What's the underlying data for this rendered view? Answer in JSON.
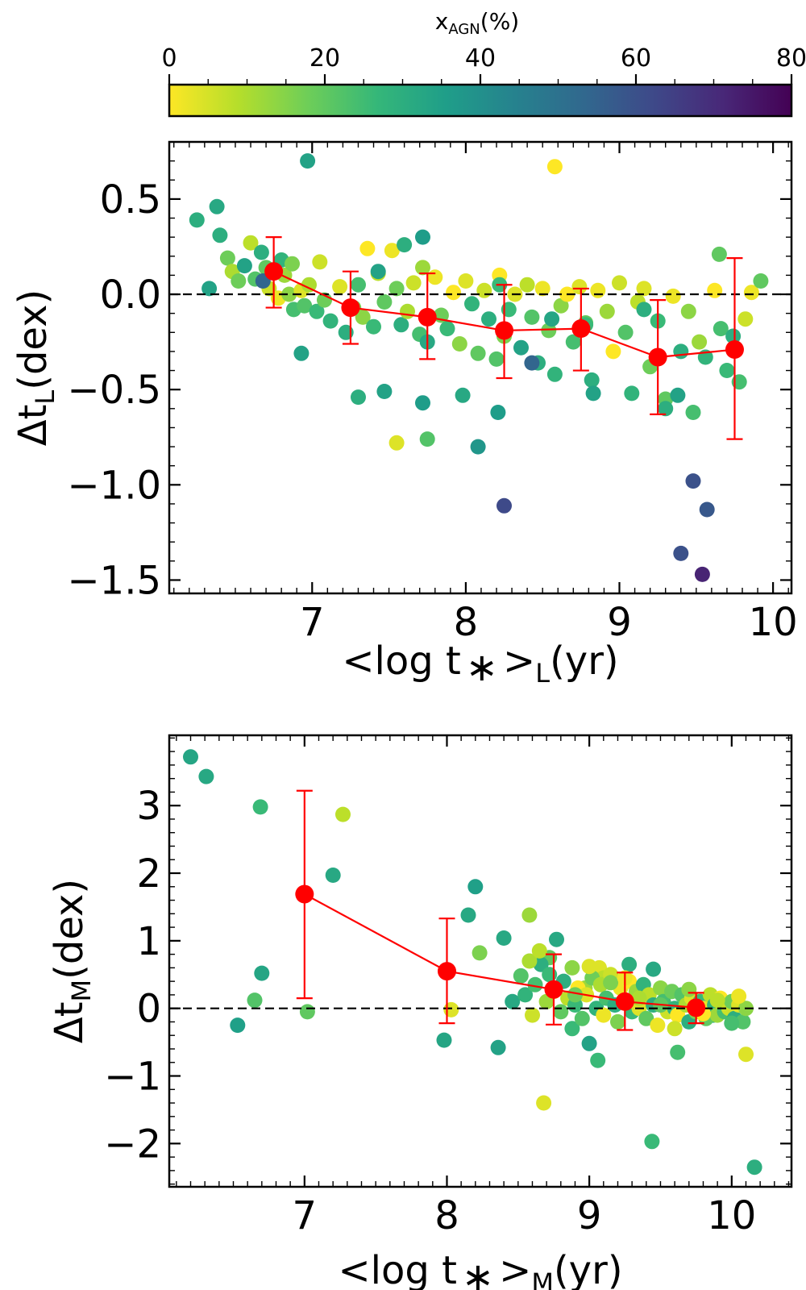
{
  "colorbar": {
    "label_main": "x",
    "label_sub": "AGN",
    "label_unit": "(%)",
    "range": [
      0,
      80
    ],
    "ticks": [
      0,
      20,
      40,
      60,
      80
    ],
    "tick_labels": [
      "0",
      "20",
      "40",
      "60",
      "80"
    ],
    "colormap": "viridis_r",
    "colors": [
      "#fde725",
      "#b5de2b",
      "#6ece58",
      "#35b779",
      "#1f9e89",
      "#26828e",
      "#31688e",
      "#3e4989",
      "#482878",
      "#440154"
    ]
  },
  "accent_color": "#ff0000",
  "chart_data": [
    {
      "type": "scatter",
      "title": "",
      "xlabel_pre": "<log t",
      "xlabel_star": "∗",
      "xlabel_mid": ">",
      "xlabel_sub": "L",
      "xlabel_post": "(yr)",
      "ylabel_pre": "Δt",
      "ylabel_sub": "L",
      "ylabel_post": "(dex)",
      "xlim": [
        6.07,
        10.12
      ],
      "ylim": [
        -1.57,
        0.8
      ],
      "xticks": [
        7,
        8,
        9,
        10
      ],
      "xtick_labels": [
        "7",
        "8",
        "9",
        "10"
      ],
      "yticks": [
        -1.5,
        -1.0,
        -0.5,
        0.0,
        0.5
      ],
      "ytick_labels": [
        "−1.5",
        "−1.0",
        "−0.5",
        "0.0",
        "0.5"
      ],
      "reference_line_y": 0,
      "points": {
        "x": [
          6.25,
          6.38,
          6.4,
          6.45,
          6.48,
          6.52,
          6.56,
          6.6,
          6.63,
          6.67,
          6.7,
          6.72,
          6.78,
          6.8,
          6.82,
          6.85,
          6.88,
          6.93,
          6.95,
          6.98,
          7.03,
          7.05,
          7.08,
          7.12,
          7.18,
          7.22,
          7.27,
          7.3,
          7.33,
          7.36,
          7.4,
          7.43,
          7.47,
          7.52,
          7.55,
          7.58,
          7.62,
          7.66,
          7.7,
          7.72,
          7.75,
          7.8,
          7.84,
          7.88,
          7.92,
          7.96,
          8.0,
          8.04,
          8.08,
          8.12,
          8.15,
          8.2,
          8.22,
          8.25,
          8.28,
          8.32,
          8.36,
          8.4,
          8.43,
          8.47,
          8.5,
          8.54,
          8.58,
          8.62,
          8.66,
          8.7,
          8.74,
          8.78,
          8.82,
          8.86,
          8.92,
          8.96,
          9.0,
          9.04,
          9.08,
          9.12,
          9.16,
          9.2,
          9.25,
          9.3,
          9.35,
          9.4,
          9.45,
          9.48,
          9.52,
          9.56,
          9.62,
          9.66,
          9.7,
          9.74,
          9.78,
          9.82,
          9.86,
          9.92,
          6.33,
          6.68,
          6.87,
          7.43,
          7.6,
          7.72,
          7.98,
          8.22,
          8.43,
          8.56,
          6.97,
          7.72,
          8.83,
          9.4,
          9.57,
          9.48,
          9.54,
          9.38,
          9.3,
          8.25,
          8.21,
          8.58,
          6.93,
          7.47,
          7.3,
          8.08,
          8.78,
          9.16,
          9.65,
          7.75,
          7.55
        ],
        "y": [
          0.39,
          0.46,
          0.31,
          0.19,
          0.12,
          0.07,
          0.15,
          0.27,
          0.08,
          0.22,
          0.14,
          0.03,
          -0.02,
          0.18,
          0.1,
          0.0,
          -0.08,
          0.02,
          -0.06,
          0.05,
          -0.09,
          0.17,
          -0.03,
          -0.14,
          0.04,
          -0.2,
          -0.07,
          0.05,
          -0.12,
          0.24,
          -0.17,
          0.11,
          -0.04,
          0.23,
          0.03,
          -0.16,
          -0.09,
          0.06,
          -0.21,
          0.14,
          -0.25,
          0.09,
          -0.11,
          -0.18,
          0.01,
          -0.26,
          0.07,
          -0.05,
          -0.31,
          0.02,
          -0.13,
          -0.34,
          0.1,
          -0.22,
          -0.08,
          0.0,
          -0.28,
          0.05,
          -0.12,
          -0.36,
          0.03,
          -0.19,
          -0.42,
          -0.06,
          0.0,
          -0.25,
          0.04,
          -0.15,
          -0.45,
          0.02,
          -0.09,
          -0.3,
          0.06,
          -0.2,
          -0.52,
          -0.04,
          0.03,
          -0.38,
          -0.14,
          -0.55,
          -0.01,
          -0.3,
          -0.09,
          -0.62,
          -0.25,
          -0.33,
          0.02,
          -0.18,
          -0.4,
          -0.22,
          -0.46,
          -0.13,
          0.01,
          0.07,
          0.03,
          0.07,
          0.16,
          0.12,
          0.26,
          0.3,
          -0.53,
          0.05,
          -0.36,
          -0.13,
          0.7,
          -0.57,
          -0.52,
          -1.36,
          -1.13,
          -0.98,
          -1.47,
          -0.53,
          -0.6,
          -1.11,
          -0.62,
          0.67,
          -0.31,
          -0.51,
          -0.54,
          -0.8,
          -0.16,
          -0.08,
          0.21,
          -0.76,
          -0.78
        ],
        "x_agn": [
          30,
          32,
          30,
          18,
          10,
          18,
          34,
          8,
          22,
          30,
          20,
          6,
          2,
          28,
          12,
          14,
          24,
          4,
          22,
          10,
          26,
          6,
          18,
          28,
          4,
          30,
          16,
          24,
          14,
          0,
          26,
          8,
          20,
          2,
          18,
          30,
          10,
          6,
          24,
          12,
          32,
          2,
          18,
          26,
          0,
          14,
          4,
          28,
          20,
          6,
          30,
          22,
          0,
          16,
          26,
          4,
          34,
          8,
          22,
          30,
          2,
          18,
          28,
          14,
          0,
          24,
          4,
          20,
          30,
          2,
          12,
          0,
          6,
          22,
          28,
          8,
          4,
          18,
          26,
          20,
          2,
          30,
          14,
          24,
          12,
          28,
          0,
          24,
          26,
          30,
          24,
          6,
          2,
          20,
          34,
          54,
          16,
          34,
          30,
          36,
          32,
          26,
          54,
          33,
          34,
          36,
          34,
          60,
          58,
          60,
          72,
          34,
          30,
          62,
          36,
          0,
          34,
          34,
          30,
          38,
          26,
          30,
          20,
          22,
          4
        ]
      },
      "bins": {
        "x": [
          6.75,
          7.25,
          7.75,
          8.25,
          8.75,
          9.25,
          9.75
        ],
        "y": [
          0.12,
          -0.07,
          -0.12,
          -0.19,
          -0.18,
          -0.33,
          -0.29
        ],
        "err_low": [
          0.19,
          0.19,
          0.22,
          0.25,
          0.22,
          0.3,
          0.47
        ],
        "err_high": [
          0.18,
          0.19,
          0.23,
          0.24,
          0.21,
          0.3,
          0.48
        ]
      }
    },
    {
      "type": "scatter",
      "title": "",
      "xlabel_pre": "<log t",
      "xlabel_star": "∗",
      "xlabel_mid": ">",
      "xlabel_sub": "M",
      "xlabel_post": "(yr)",
      "ylabel_pre": "Δt",
      "ylabel_sub": "M",
      "ylabel_post": "(dex)",
      "xlim": [
        6.05,
        10.42
      ],
      "ylim": [
        -2.64,
        4.04
      ],
      "xticks": [
        7,
        8,
        9,
        10
      ],
      "xtick_labels": [
        "7",
        "8",
        "9",
        "10"
      ],
      "yticks": [
        -2,
        -1,
        0,
        1,
        2,
        3
      ],
      "ytick_labels": [
        "−2",
        "−1",
        "0",
        "1",
        "2",
        "3"
      ],
      "reference_line_y": 0,
      "points": {
        "x": [
          6.2,
          6.31,
          6.53,
          6.65,
          6.69,
          6.7,
          7.02,
          7.2,
          7.27,
          7.98,
          8.03,
          8.15,
          8.2,
          8.23,
          8.36,
          8.4,
          8.46,
          8.58,
          8.68,
          8.72,
          8.77,
          8.88,
          8.97,
          9.0,
          9.06,
          9.07,
          9.1,
          9.28,
          9.44,
          9.45,
          9.62,
          9.87,
          10.1,
          10.16,
          8.52,
          8.55,
          8.6,
          8.62,
          8.66,
          8.7,
          8.72,
          8.75,
          8.8,
          8.82,
          8.85,
          8.88,
          8.9,
          8.92,
          8.95,
          8.98,
          9.02,
          9.05,
          9.08,
          9.1,
          9.12,
          9.15,
          9.18,
          9.2,
          9.22,
          9.25,
          9.28,
          9.3,
          9.33,
          9.35,
          9.38,
          9.4,
          9.42,
          9.45,
          9.48,
          9.5,
          9.52,
          9.55,
          9.58,
          9.6,
          9.62,
          9.65,
          9.68,
          9.7,
          9.72,
          9.75,
          9.78,
          9.8,
          9.82,
          9.85,
          9.88,
          9.9,
          9.92,
          9.95,
          9.98,
          10.0,
          10.02,
          10.05,
          10.08,
          10.1,
          8.58,
          8.65,
          8.9,
          9.0,
          9.15,
          9.25,
          9.35,
          9.5,
          9.6,
          9.7,
          9.8,
          9.9,
          10.0,
          10.05
        ],
        "y": [
          3.72,
          3.43,
          -0.25,
          0.12,
          2.98,
          0.52,
          -0.05,
          1.97,
          2.87,
          -0.47,
          -0.02,
          1.38,
          1.8,
          0.82,
          -0.58,
          1.04,
          0.1,
          1.38,
          -1.4,
          0.75,
          1.02,
          -0.3,
          0.3,
          -0.52,
          -0.77,
          0.6,
          0.45,
          0.65,
          -1.97,
          0.58,
          -0.65,
          -0.1,
          -0.68,
          -2.35,
          0.48,
          0.2,
          -0.1,
          0.35,
          0.65,
          0.1,
          0.5,
          0.25,
          -0.05,
          0.4,
          0.15,
          0.6,
          0.05,
          0.3,
          -0.15,
          0.2,
          0.45,
          0.0,
          0.35,
          -0.1,
          0.15,
          0.5,
          0.05,
          -0.2,
          0.3,
          0.1,
          0.4,
          -0.05,
          0.25,
          0.0,
          0.35,
          -0.15,
          0.2,
          0.05,
          -0.25,
          0.3,
          0.1,
          -0.05,
          0.25,
          0.0,
          -0.1,
          0.2,
          0.05,
          -0.2,
          0.15,
          -0.05,
          0.1,
          0.0,
          -0.15,
          0.2,
          0.05,
          -0.1,
          0.15,
          -0.05,
          0.0,
          0.1,
          -0.15,
          0.05,
          -0.2,
          0.0,
          0.7,
          0.85,
          0.2,
          0.62,
          0.38,
          0.45,
          0.15,
          0.05,
          -0.3,
          0.28,
          -0.08,
          0.12,
          -0.22,
          0.18
        ],
        "x_agn": [
          33,
          32,
          35,
          22,
          26,
          33,
          20,
          32,
          8,
          33,
          4,
          32,
          35,
          16,
          34,
          32,
          32,
          12,
          4,
          20,
          32,
          26,
          12,
          34,
          26,
          4,
          8,
          30,
          26,
          32,
          24,
          30,
          4,
          30,
          22,
          28,
          6,
          24,
          30,
          12,
          26,
          4,
          20,
          30,
          8,
          14,
          26,
          0,
          22,
          4,
          18,
          28,
          10,
          2,
          24,
          6,
          30,
          16,
          2,
          22,
          0,
          26,
          12,
          4,
          28,
          20,
          8,
          30,
          2,
          14,
          24,
          6,
          18,
          28,
          0,
          22,
          10,
          30,
          4,
          16,
          26,
          2,
          20,
          8,
          28,
          12,
          0,
          24,
          6,
          18,
          30,
          4,
          22,
          14,
          10,
          8,
          18,
          4,
          16,
          2,
          10,
          20,
          6,
          14,
          0,
          8,
          24,
          2
        ]
      },
      "bins": {
        "x": [
          7.0,
          8.0,
          8.75,
          9.25,
          9.75
        ],
        "y": [
          1.69,
          0.55,
          0.28,
          0.1,
          0.01
        ],
        "err_low": [
          1.54,
          0.77,
          0.52,
          0.42,
          0.23
        ],
        "err_high": [
          1.53,
          0.78,
          0.52,
          0.43,
          0.22
        ]
      }
    }
  ]
}
